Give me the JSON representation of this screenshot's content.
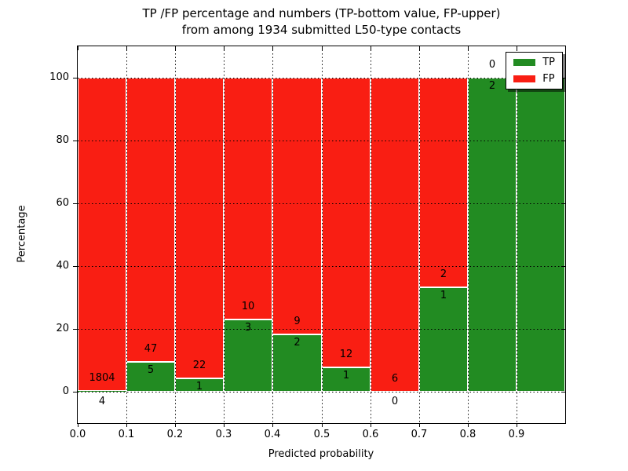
{
  "chart_data": {
    "type": "bar",
    "stacked": true,
    "title_lines": [
      "TP /FP percentage and numbers (TP-bottom value, FP-upper)",
      "from among 1934 submitted L50-type contacts"
    ],
    "xlabel": "Predicted probability",
    "ylabel": "Percentage",
    "x_tick_labels": [
      "0.0",
      "0.1",
      "0.2",
      "0.3",
      "0.4",
      "0.5",
      "0.6",
      "0.7",
      "0.8",
      "0.9"
    ],
    "y_tick_labels": [
      "0",
      "20",
      "40",
      "60",
      "80",
      "100"
    ],
    "y_tick_values": [
      0,
      20,
      40,
      60,
      80,
      100
    ],
    "xlim": [
      0.0,
      1.0
    ],
    "ylim": [
      -10,
      110
    ],
    "grid": "dotted",
    "legend_position": "upper right",
    "legend": [
      {
        "name": "TP",
        "color": "#228b22"
      },
      {
        "name": "FP",
        "color": "#f91e13"
      }
    ],
    "total_contacts": 1934,
    "bins": [
      {
        "x_start": 0.0,
        "x_end": 0.1,
        "tp": 4,
        "fp": 1804
      },
      {
        "x_start": 0.1,
        "x_end": 0.2,
        "tp": 5,
        "fp": 47
      },
      {
        "x_start": 0.2,
        "x_end": 0.3,
        "tp": 1,
        "fp": 22
      },
      {
        "x_start": 0.3,
        "x_end": 0.4,
        "tp": 3,
        "fp": 10
      },
      {
        "x_start": 0.4,
        "x_end": 0.5,
        "tp": 2,
        "fp": 9
      },
      {
        "x_start": 0.5,
        "x_end": 0.6,
        "tp": 1,
        "fp": 12
      },
      {
        "x_start": 0.6,
        "x_end": 0.7,
        "tp": 0,
        "fp": 6
      },
      {
        "x_start": 0.7,
        "x_end": 0.8,
        "tp": 1,
        "fp": 2
      },
      {
        "x_start": 0.8,
        "x_end": 0.9,
        "tp": 2,
        "fp": 0
      },
      {
        "x_start": 0.9,
        "x_end": 1.0,
        "tp": 3,
        "fp": 0
      }
    ]
  }
}
